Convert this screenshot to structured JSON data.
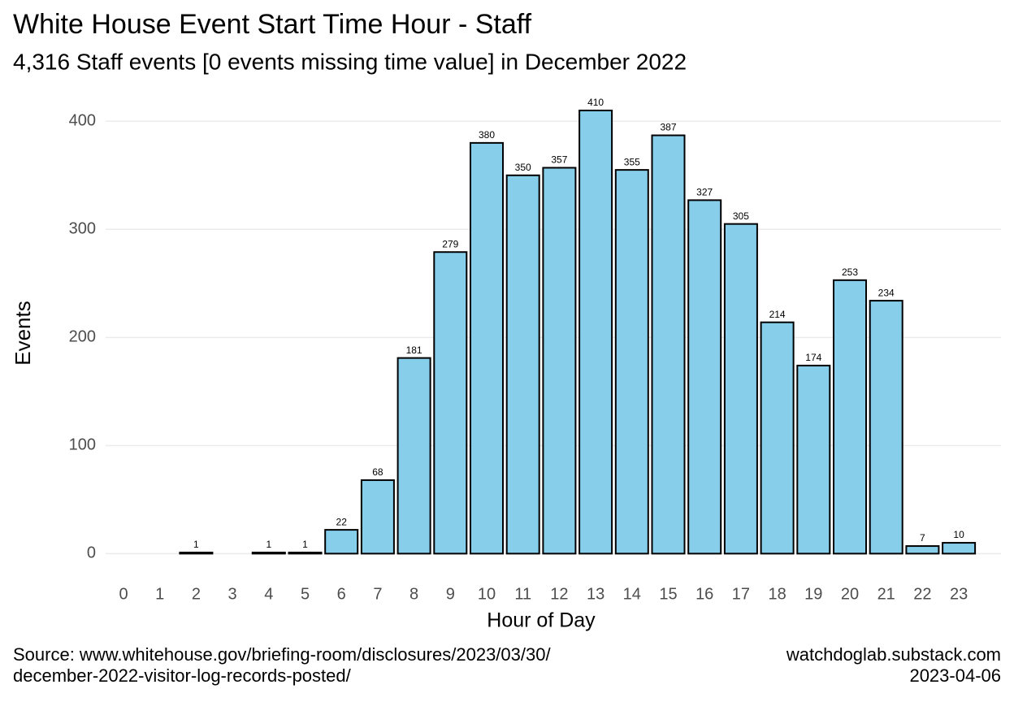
{
  "chart_data": {
    "type": "bar",
    "title": "White House Event Start Time Hour - Staff",
    "subtitle": "4,316 Staff events [0 events missing time value] in December 2022",
    "x_label": "Hour of Day",
    "y_label": "Events",
    "categories": [
      "0",
      "1",
      "2",
      "3",
      "4",
      "5",
      "6",
      "7",
      "8",
      "9",
      "10",
      "11",
      "12",
      "13",
      "14",
      "15",
      "16",
      "17",
      "18",
      "19",
      "20",
      "21",
      "22",
      "23"
    ],
    "values": [
      null,
      null,
      1,
      null,
      1,
      1,
      22,
      68,
      181,
      279,
      380,
      350,
      357,
      410,
      355,
      387,
      327,
      305,
      214,
      174,
      253,
      234,
      7,
      10
    ],
    "color": "#87ceeb",
    "ylim": [
      -14,
      422
    ],
    "yticks": [
      0,
      100,
      200,
      300,
      400
    ],
    "grid": true,
    "caption_left": [
      "Source: www.whitehouse.gov/briefing-room/disclosures/2023/03/30/",
      "december-2022-visitor-log-records-posted/"
    ],
    "caption_right": [
      "watchdoglab.substack.com",
      "2023-04-06"
    ]
  }
}
